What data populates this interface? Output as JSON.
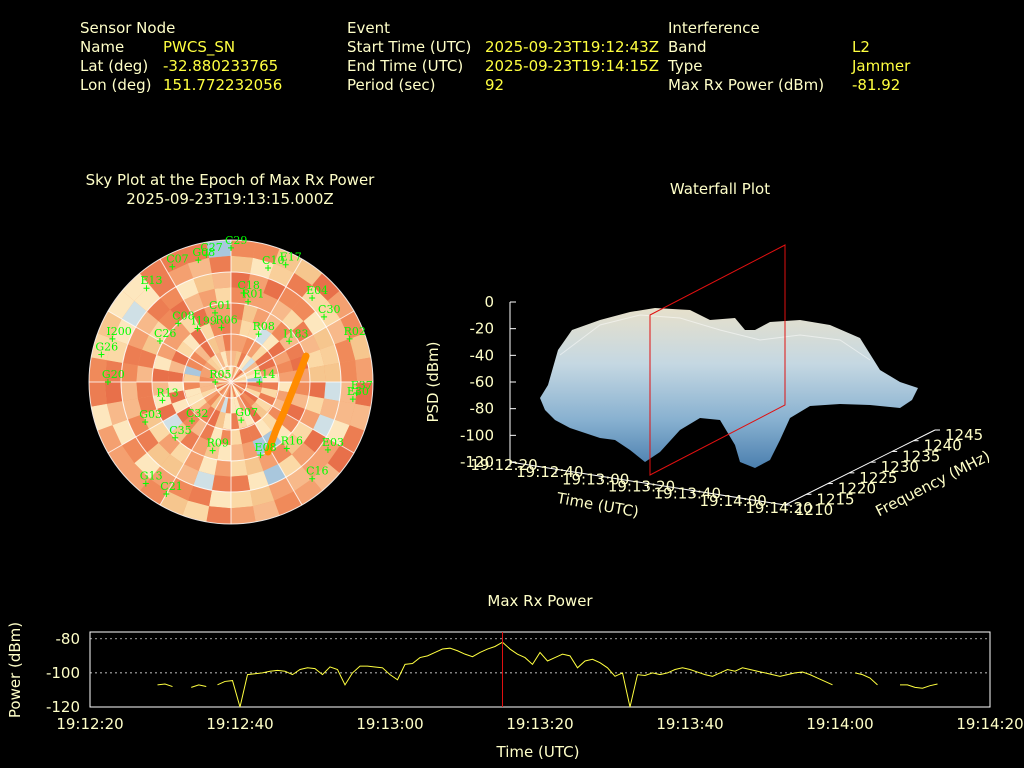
{
  "sensor": {
    "header": "Sensor Node",
    "rows": [
      {
        "label": "Name",
        "value": "PWCS_SN"
      },
      {
        "label": "Lat (deg)",
        "value": "-32.880233765"
      },
      {
        "label": "Lon (deg)",
        "value": "151.772232056"
      }
    ]
  },
  "event": {
    "header": "Event",
    "rows": [
      {
        "label": "Start Time (UTC)",
        "value": "2025-09-23T19:12:43Z"
      },
      {
        "label": "End Time (UTC)",
        "value": "2025-09-23T19:14:15Z"
      },
      {
        "label": "Period (sec)",
        "value": "92"
      }
    ]
  },
  "interference": {
    "header": "Interference",
    "rows": [
      {
        "label": "Band",
        "value": "L2"
      },
      {
        "label": "Type",
        "value": "Jammer"
      },
      {
        "label": "Max Rx Power (dBm)",
        "value": "-81.92"
      }
    ]
  },
  "chart_data": [
    {
      "type": "scatter",
      "title": "Sky Plot at the Epoch of Max Rx Power",
      "subtitle": "2025-09-23T19:13:15.000Z",
      "satellites": [
        {
          "id": "C29",
          "az": 0,
          "el": 5
        },
        {
          "id": "C07",
          "az": 333,
          "el": 8
        },
        {
          "id": "G08",
          "az": 345,
          "el": 10
        },
        {
          "id": "C27",
          "az": 349,
          "el": 8
        },
        {
          "id": "C10",
          "az": 18,
          "el": 14
        },
        {
          "id": "E17",
          "az": 25,
          "el": 8
        },
        {
          "id": "E13",
          "az": 318,
          "el": 10
        },
        {
          "id": "C18",
          "az": 8,
          "el": 33
        },
        {
          "id": "R01",
          "az": 12,
          "el": 38
        },
        {
          "id": "E04",
          "az": 44,
          "el": 16
        },
        {
          "id": "C30",
          "az": 55,
          "el": 18
        },
        {
          "id": "C01",
          "az": 347,
          "el": 45
        },
        {
          "id": "C08",
          "az": 318,
          "el": 40
        },
        {
          "id": "I199",
          "az": 328,
          "el": 50
        },
        {
          "id": "R06",
          "az": 350,
          "el": 55
        },
        {
          "id": "R08",
          "az": 30,
          "el": 55
        },
        {
          "id": "I183",
          "az": 55,
          "el": 45
        },
        {
          "id": "R02",
          "az": 70,
          "el": 10
        },
        {
          "id": "C26",
          "az": 300,
          "el": 38
        },
        {
          "id": "I200",
          "az": 290,
          "el": 10
        },
        {
          "id": "G26",
          "az": 282,
          "el": 6
        },
        {
          "id": "R05",
          "az": 270,
          "el": 80
        },
        {
          "id": "E14",
          "az": 90,
          "el": 72
        },
        {
          "id": "G20",
          "az": 270,
          "el": 12
        },
        {
          "id": "R13",
          "az": 255,
          "el": 45
        },
        {
          "id": "C32",
          "az": 225,
          "el": 55
        },
        {
          "id": "E37",
          "az": 95,
          "el": 10
        },
        {
          "id": "E30",
          "az": 98,
          "el": 12
        },
        {
          "id": "G07",
          "az": 165,
          "el": 65
        },
        {
          "id": "R16",
          "az": 140,
          "el": 35
        },
        {
          "id": "G03",
          "az": 245,
          "el": 30
        },
        {
          "id": "C35",
          "az": 225,
          "el": 40
        },
        {
          "id": "E03",
          "az": 125,
          "el": 15
        },
        {
          "id": "R09",
          "az": 195,
          "el": 45
        },
        {
          "id": "G13",
          "az": 220,
          "el": 6
        },
        {
          "id": "C21",
          "az": 210,
          "el": 8
        },
        {
          "id": "C16",
          "az": 140,
          "el": 10
        },
        {
          "id": "E08",
          "az": 158,
          "el": 40
        }
      ]
    },
    {
      "type": "surface",
      "title": "Waterfall Plot",
      "xlabel": "Time (UTC)",
      "ylabel": "Frequency (MHz)",
      "zlabel": "PSD (dBm)",
      "x_ticks": [
        "19:12:20",
        "19:12:40",
        "19:13:00",
        "19:13:20",
        "19:13:40",
        "19:14:00",
        "19:14:20"
      ],
      "y_ticks": [
        "1210",
        "1215",
        "1220",
        "1225",
        "1230",
        "1235",
        "1240",
        "1245"
      ],
      "z_ticks": [
        "0",
        "-20",
        "-40",
        "-60",
        "-80",
        "-100",
        "-120"
      ],
      "zlim": [
        -120,
        0
      ],
      "marker_time": "19:13:15"
    },
    {
      "type": "line",
      "title": "Max Rx Power",
      "xlabel": "Time (UTC)",
      "ylabel": "Power (dBm)",
      "x_ticks": [
        "19:12:20",
        "19:12:40",
        "19:13:00",
        "19:13:20",
        "19:13:40",
        "19:14:00",
        "19:14:20"
      ],
      "y_ticks": [
        "-80",
        "-100",
        "-120"
      ],
      "xlim": [
        0,
        120
      ],
      "ylim": [
        -120,
        -76
      ],
      "marker_x": 55,
      "series": [
        {
          "x": [
            9,
            10,
            11
          ],
          "y": [
            -107,
            -106.5,
            -108
          ]
        },
        {
          "x": [
            13.5,
            14.5,
            15.5
          ],
          "y": [
            -108.5,
            -107,
            -108
          ]
        },
        {
          "x": [
            17,
            18,
            19,
            20,
            21,
            22,
            23,
            24,
            25,
            26,
            27,
            28,
            29,
            30,
            31,
            32,
            33,
            34,
            35,
            36,
            37,
            38,
            39,
            40,
            41,
            42,
            43,
            44,
            45,
            46,
            47,
            48,
            49,
            50,
            51,
            52,
            53,
            54,
            55,
            56,
            57,
            58,
            59,
            60,
            61,
            62,
            63,
            64,
            65,
            66,
            67,
            68,
            69,
            70,
            71,
            72,
            73,
            74,
            75,
            76,
            77,
            78,
            79,
            80,
            81,
            82,
            83,
            84,
            85,
            86,
            87,
            88,
            89,
            90,
            91,
            92,
            93,
            94,
            95,
            96,
            97,
            98,
            99
          ],
          "y": [
            -107,
            -105,
            -104.5,
            -120,
            -101,
            -100.5,
            -100,
            -99,
            -98.5,
            -99,
            -101,
            -98,
            -97,
            -97.5,
            -101,
            -96.5,
            -98,
            -107,
            -100,
            -96,
            -96,
            -96.5,
            -97,
            -101,
            -104,
            -95,
            -94.5,
            -91,
            -90,
            -88,
            -86,
            -85.5,
            -87,
            -89,
            -90.5,
            -88,
            -86,
            -84.5,
            -82,
            -86,
            -89,
            -91,
            -95,
            -88,
            -93,
            -91,
            -89,
            -90,
            -97,
            -93,
            -92,
            -94,
            -97,
            -102,
            -100,
            -120,
            -101,
            -101.5,
            -100,
            -101,
            -100,
            -98,
            -97,
            -98,
            -99.5,
            -101,
            -102,
            -100,
            -98,
            -99,
            -97,
            -98,
            -99,
            -100,
            -101,
            -102,
            -101,
            -100,
            -99.5,
            -101,
            -103,
            -105,
            -107
          ]
        },
        {
          "x": [
            102,
            103,
            104,
            105
          ],
          "y": [
            -100,
            -101,
            -103,
            -107
          ]
        },
        {
          "x": [
            108,
            109,
            110,
            111,
            112,
            113
          ],
          "y": [
            -107,
            -107,
            -108.5,
            -109,
            -107.5,
            -106.5
          ]
        }
      ]
    }
  ]
}
